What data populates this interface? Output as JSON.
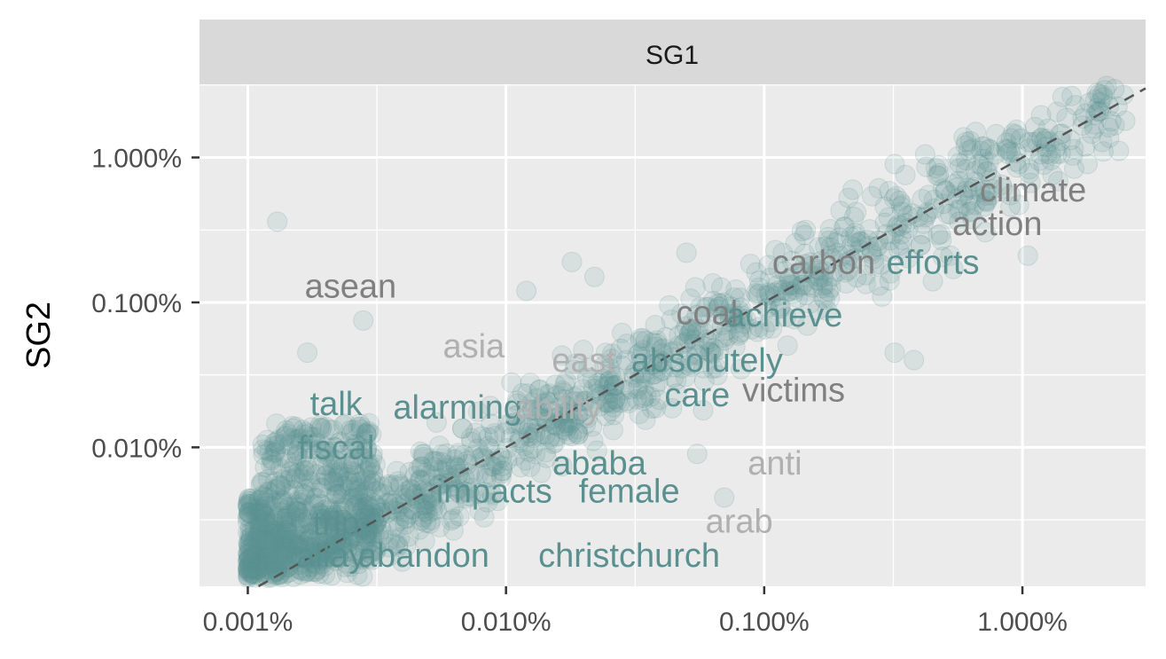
{
  "chart_data": {
    "type": "scatter",
    "facet": "SG1",
    "xlabel": "",
    "ylabel": "SG2",
    "x_scale": "log",
    "y_scale": "log",
    "xlim_percent": [
      0.00065,
      3.0
    ],
    "ylim_percent": [
      0.0011,
      3.2
    ],
    "x_ticks": [
      {
        "value": 0.001,
        "label": "0.001%"
      },
      {
        "value": 0.01,
        "label": "0.010%"
      },
      {
        "value": 0.1,
        "label": "0.100%"
      },
      {
        "value": 1.0,
        "label": "1.000%"
      }
    ],
    "y_ticks": [
      {
        "value": 0.01,
        "label": "0.010%"
      },
      {
        "value": 0.1,
        "label": "0.100%"
      },
      {
        "value": 1.0,
        "label": "1.000%"
      }
    ],
    "reference_line": "y = x (dashed)",
    "point_color": "#5a9190",
    "word_labels": [
      {
        "text": "climate",
        "x": 1.1,
        "y": 0.6,
        "color": "#808080"
      },
      {
        "text": "action",
        "x": 0.8,
        "y": 0.35,
        "color": "#808080"
      },
      {
        "text": "carbon",
        "x": 0.17,
        "y": 0.19,
        "color": "#808080"
      },
      {
        "text": "efforts",
        "x": 0.45,
        "y": 0.19,
        "color": "#5a9190"
      },
      {
        "text": "asean",
        "x": 0.0025,
        "y": 0.13,
        "color": "#808080"
      },
      {
        "text": "coal",
        "x": 0.06,
        "y": 0.085,
        "color": "#808080"
      },
      {
        "text": "achieve",
        "x": 0.12,
        "y": 0.082,
        "color": "#5a9190"
      },
      {
        "text": "asia",
        "x": 0.0075,
        "y": 0.05,
        "color": "#b0b0b0"
      },
      {
        "text": "east",
        "x": 0.02,
        "y": 0.04,
        "color": "#b0b0b0"
      },
      {
        "text": "absolutely",
        "x": 0.06,
        "y": 0.04,
        "color": "#5a9190"
      },
      {
        "text": "victims",
        "x": 0.13,
        "y": 0.025,
        "color": "#808080"
      },
      {
        "text": "talk",
        "x": 0.0022,
        "y": 0.02,
        "color": "#5a9190"
      },
      {
        "text": "alarming",
        "x": 0.0065,
        "y": 0.019,
        "color": "#5a9190"
      },
      {
        "text": "ability",
        "x": 0.016,
        "y": 0.019,
        "color": "#b0b0b0"
      },
      {
        "text": "care",
        "x": 0.055,
        "y": 0.023,
        "color": "#5a9190"
      },
      {
        "text": "fiscal",
        "x": 0.0022,
        "y": 0.01,
        "color": "#5a9190"
      },
      {
        "text": "ababa",
        "x": 0.023,
        "y": 0.0078,
        "color": "#5a9190"
      },
      {
        "text": "anti",
        "x": 0.11,
        "y": 0.0078,
        "color": "#b0b0b0"
      },
      {
        "text": "impacts",
        "x": 0.009,
        "y": 0.005,
        "color": "#5a9190"
      },
      {
        "text": "female",
        "x": 0.03,
        "y": 0.005,
        "color": "#5a9190"
      },
      {
        "text": "arab",
        "x": 0.08,
        "y": 0.0031,
        "color": "#b0b0b0"
      },
      {
        "text": "trip",
        "x": 0.0022,
        "y": 0.003,
        "color": "#5a9190"
      },
      {
        "text": "allay",
        "x": 0.0021,
        "y": 0.0018,
        "color": "#5a9190"
      },
      {
        "text": "abandon",
        "x": 0.0048,
        "y": 0.0018,
        "color": "#5a9190"
      },
      {
        "text": "christchurch",
        "x": 0.03,
        "y": 0.0018,
        "color": "#5a9190"
      }
    ],
    "outlier_points": [
      [
        0.0013,
        0.36
      ],
      [
        0.0028,
        0.075
      ],
      [
        0.0105,
        0.028
      ],
      [
        0.012,
        0.12
      ],
      [
        0.05,
        0.22
      ],
      [
        0.14,
        0.31
      ],
      [
        0.18,
        0.32
      ],
      [
        0.22,
        0.6
      ],
      [
        0.32,
        0.9
      ],
      [
        0.42,
        1.05
      ],
      [
        0.66,
        1.5
      ],
      [
        0.9,
        0.55
      ],
      [
        1.05,
        0.21
      ],
      [
        1.22,
        1.3
      ],
      [
        1.4,
        1.45
      ],
      [
        2.0,
        2.4
      ],
      [
        0.54,
        0.17
      ],
      [
        0.45,
        0.14
      ],
      [
        0.38,
        0.04
      ],
      [
        0.32,
        0.045
      ],
      [
        0.058,
        0.018
      ],
      [
        0.055,
        0.009
      ],
      [
        0.07,
        0.0045
      ],
      [
        0.0017,
        0.045
      ],
      [
        0.0014,
        0.012
      ],
      [
        0.022,
        0.15
      ],
      [
        0.018,
        0.19
      ]
    ]
  }
}
